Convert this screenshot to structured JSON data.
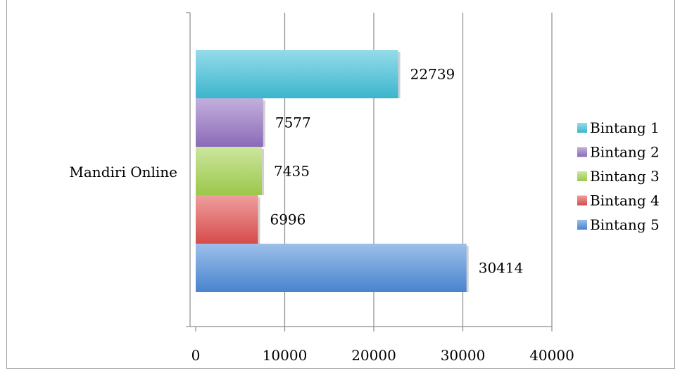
{
  "chart_data": {
    "type": "bar",
    "orientation": "horizontal",
    "categories": [
      "Mandiri Online"
    ],
    "series": [
      {
        "name": "Bintang 1",
        "values": [
          22739
        ],
        "color": "#3fbfd8"
      },
      {
        "name": "Bintang 2",
        "values": [
          7577
        ],
        "color": "#9270c2"
      },
      {
        "name": "Bintang 3",
        "values": [
          7435
        ],
        "color": "#a3d14f"
      },
      {
        "name": "Bintang 4",
        "values": [
          6996
        ],
        "color": "#e0504f"
      },
      {
        "name": "Bintang 5",
        "values": [
          30414
        ],
        "color": "#4c8bd9"
      }
    ],
    "data_labels": [
      "22739",
      "7577",
      "7435",
      "6996",
      "30414"
    ],
    "x_ticks": [
      0,
      10000,
      20000,
      30000,
      40000
    ],
    "x_tick_labels": [
      "0",
      "10000",
      "20000",
      "30000",
      "40000"
    ],
    "xlim": [
      0,
      40000
    ],
    "grid": true,
    "legend_position": "right",
    "title": "",
    "xlabel": "",
    "ylabel": ""
  }
}
